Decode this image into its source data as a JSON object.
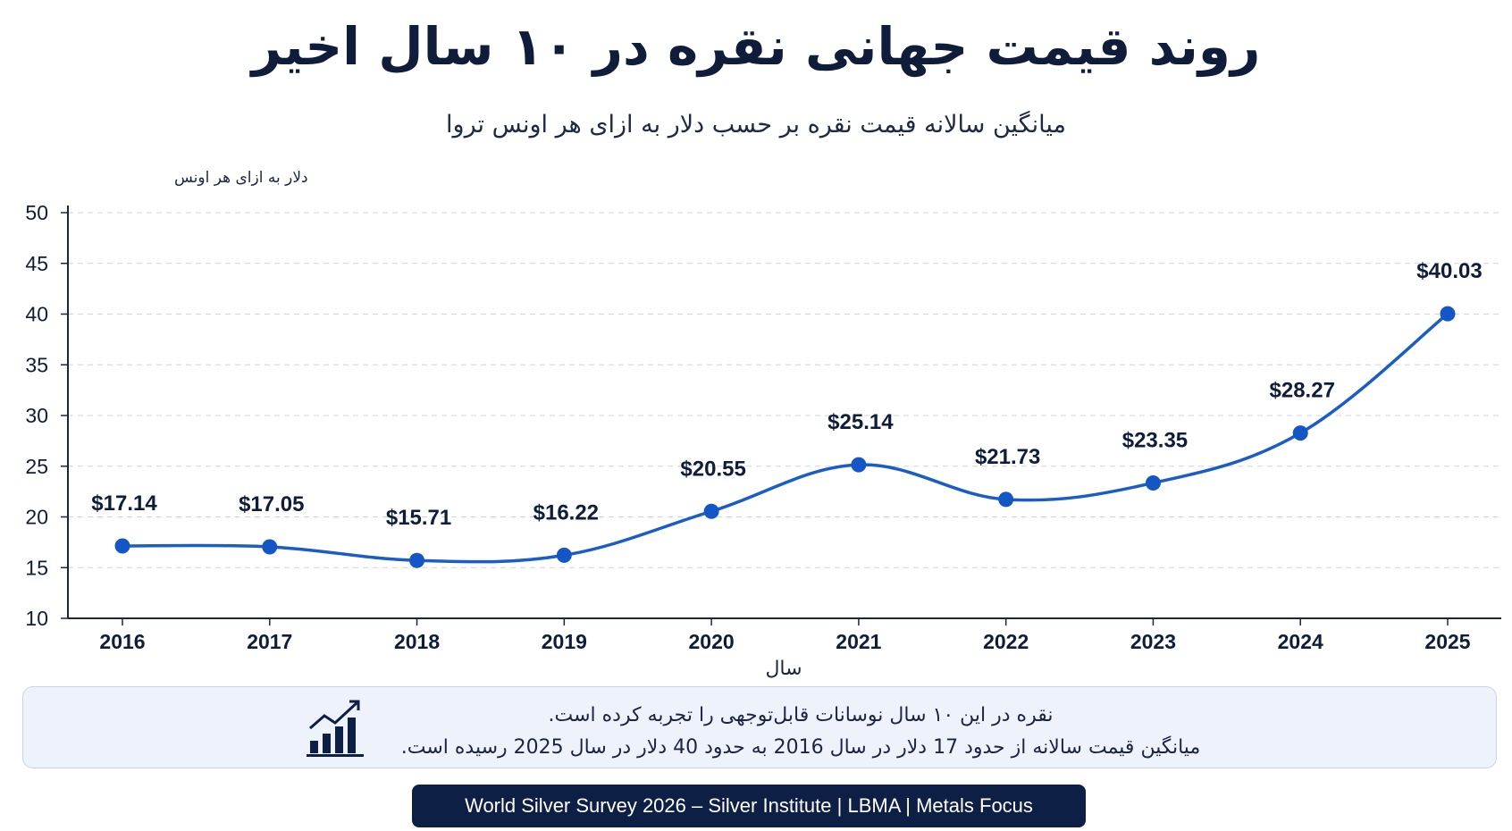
{
  "title": "روند قیمت جهانی نقره در ۱۰ سال اخیر",
  "subtitle": "میانگین سالانه قیمت نقره بر حسب دلار به ازای هر اونس تروا",
  "chart_data": {
    "type": "line",
    "title": "روند قیمت جهانی نقره در ۱۰ سال اخیر",
    "subtitle": "میانگین سالانه قیمت نقره بر حسب دلار به ازای هر اونس تروا",
    "xlabel": "سال",
    "ylabel": "دلار به ازای هر اونس",
    "categories": [
      "2016",
      "2017",
      "2018",
      "2019",
      "2020",
      "2021",
      "2022",
      "2023",
      "2024",
      "2025"
    ],
    "values": [
      17.14,
      17.05,
      15.71,
      16.22,
      20.55,
      25.14,
      21.73,
      23.35,
      28.27,
      40.03
    ],
    "data_labels": [
      "$17.14",
      "$17.05",
      "$15.71",
      "$16.22",
      "$20.55",
      "$25.14",
      "$21.73",
      "$23.35",
      "$28.27",
      "$40.03"
    ],
    "ylim": [
      10,
      50
    ],
    "yticks": [
      "10",
      "15",
      "20",
      "25",
      "30",
      "35",
      "40",
      "45",
      "50"
    ],
    "grid": "horizontal dashed",
    "line_color": "#1a5cc8",
    "point_color": "#1456c4"
  },
  "note": {
    "icon": "bar-chart-trend-icon",
    "line1": "نقره در این ۱۰ سال نوسانات قابل‌توجهی را تجربه کرده است.",
    "line2": "میانگین قیمت سالانه از حدود 17 دلار در سال 2016 به حدود 40 دلار در سال 2025 رسیده است."
  },
  "source": "World Silver Survey 2026 – Silver Institute | LBMA | Metals Focus",
  "colors": {
    "title": "#0f1d3a",
    "accent": "#1a5cc8",
    "note_bg": "#eef2fb",
    "source_bg": "#0d1f45"
  }
}
